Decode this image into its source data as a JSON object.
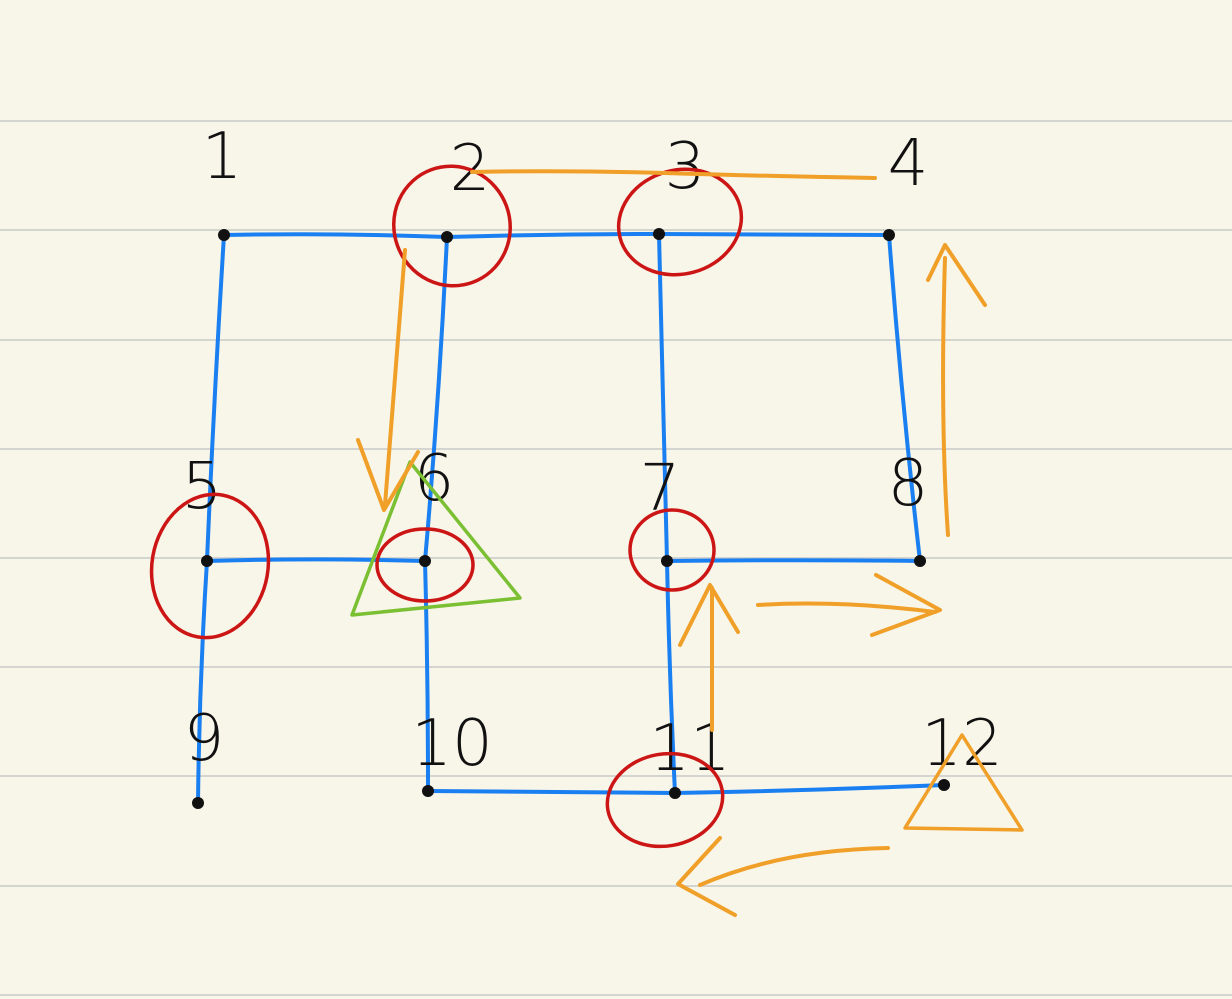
{
  "diagram": {
    "type": "grid-graph",
    "rows": 3,
    "cols": 4,
    "nodes": [
      {
        "id": "1",
        "row": 0,
        "col": 0
      },
      {
        "id": "2",
        "row": 0,
        "col": 1
      },
      {
        "id": "3",
        "row": 0,
        "col": 2
      },
      {
        "id": "4",
        "row": 0,
        "col": 3
      },
      {
        "id": "5",
        "row": 1,
        "col": 0
      },
      {
        "id": "6",
        "row": 1,
        "col": 1
      },
      {
        "id": "7",
        "row": 1,
        "col": 2
      },
      {
        "id": "8",
        "row": 1,
        "col": 3
      },
      {
        "id": "9",
        "row": 2,
        "col": 0
      },
      {
        "id": "10",
        "row": 2,
        "col": 1
      },
      {
        "id": "11",
        "row": 2,
        "col": 2
      },
      {
        "id": "12",
        "row": 2,
        "col": 3
      }
    ],
    "edges": [
      [
        "1",
        "2"
      ],
      [
        "2",
        "3"
      ],
      [
        "3",
        "4"
      ],
      [
        "1",
        "5"
      ],
      [
        "5",
        "9"
      ],
      [
        "2",
        "6"
      ],
      [
        "6",
        "10"
      ],
      [
        "3",
        "7"
      ],
      [
        "7",
        "11"
      ],
      [
        "4",
        "8"
      ],
      [
        "5",
        "6"
      ],
      [
        "7",
        "8"
      ],
      [
        "10",
        "11"
      ],
      [
        "11",
        "12"
      ]
    ],
    "circled_nodes": [
      "2",
      "3",
      "5",
      "6",
      "7",
      "11"
    ],
    "triangle_marks": [
      {
        "node": "6",
        "color": "green"
      },
      {
        "node": "12",
        "color": "orange"
      }
    ],
    "path_arrows": [
      {
        "from": "4",
        "to": "2",
        "style": "line"
      },
      {
        "from": "2",
        "to": "6",
        "style": "arrow"
      },
      {
        "from": "12",
        "to": "11",
        "style": "arrow"
      },
      {
        "from": "11",
        "to": "7",
        "style": "arrow"
      },
      {
        "from": "7",
        "to": "8",
        "style": "arrow"
      },
      {
        "from": "8",
        "to": "4",
        "style": "arrow"
      }
    ]
  },
  "colors": {
    "background": "#f8f5e9",
    "ruled_line": "#d4d4d0",
    "edge": "#1a7ff0",
    "circle": "#cc1515",
    "orange": "#f0a028",
    "green": "#7ac032",
    "ink": "#111111"
  }
}
